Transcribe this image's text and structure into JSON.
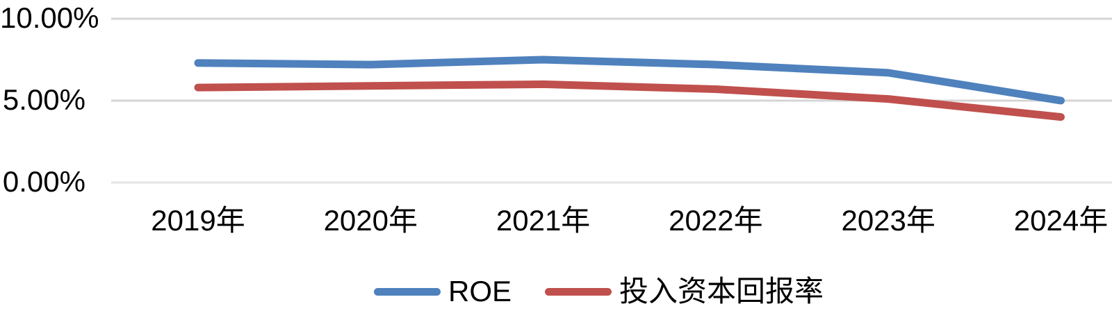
{
  "chart_data": {
    "type": "line",
    "title": "",
    "xlabel": "",
    "ylabel": "",
    "categories": [
      "2019年",
      "2020年",
      "2021年",
      "2022年",
      "2023年",
      "2024年"
    ],
    "series": [
      {
        "name": "ROE",
        "color": "#4F81BD",
        "values": [
          7.3,
          7.2,
          7.5,
          7.2,
          6.7,
          5.0
        ]
      },
      {
        "name": "投入资本回报率",
        "color": "#C0504D",
        "values": [
          5.8,
          5.9,
          6.0,
          5.7,
          5.1,
          4.0
        ]
      }
    ],
    "yticks": [
      {
        "value": 10,
        "label": "10.00%"
      },
      {
        "value": 5,
        "label": "5.00%"
      },
      {
        "value": 0,
        "label": "0.00%"
      }
    ],
    "ylim": [
      0,
      10
    ],
    "grid": "horizontal",
    "gridline_color": "#D5D5D5",
    "baseline_color": "#E4E4E4",
    "legend_position": "bottom",
    "text_color": "#000000",
    "background": "#FFFFFF"
  }
}
